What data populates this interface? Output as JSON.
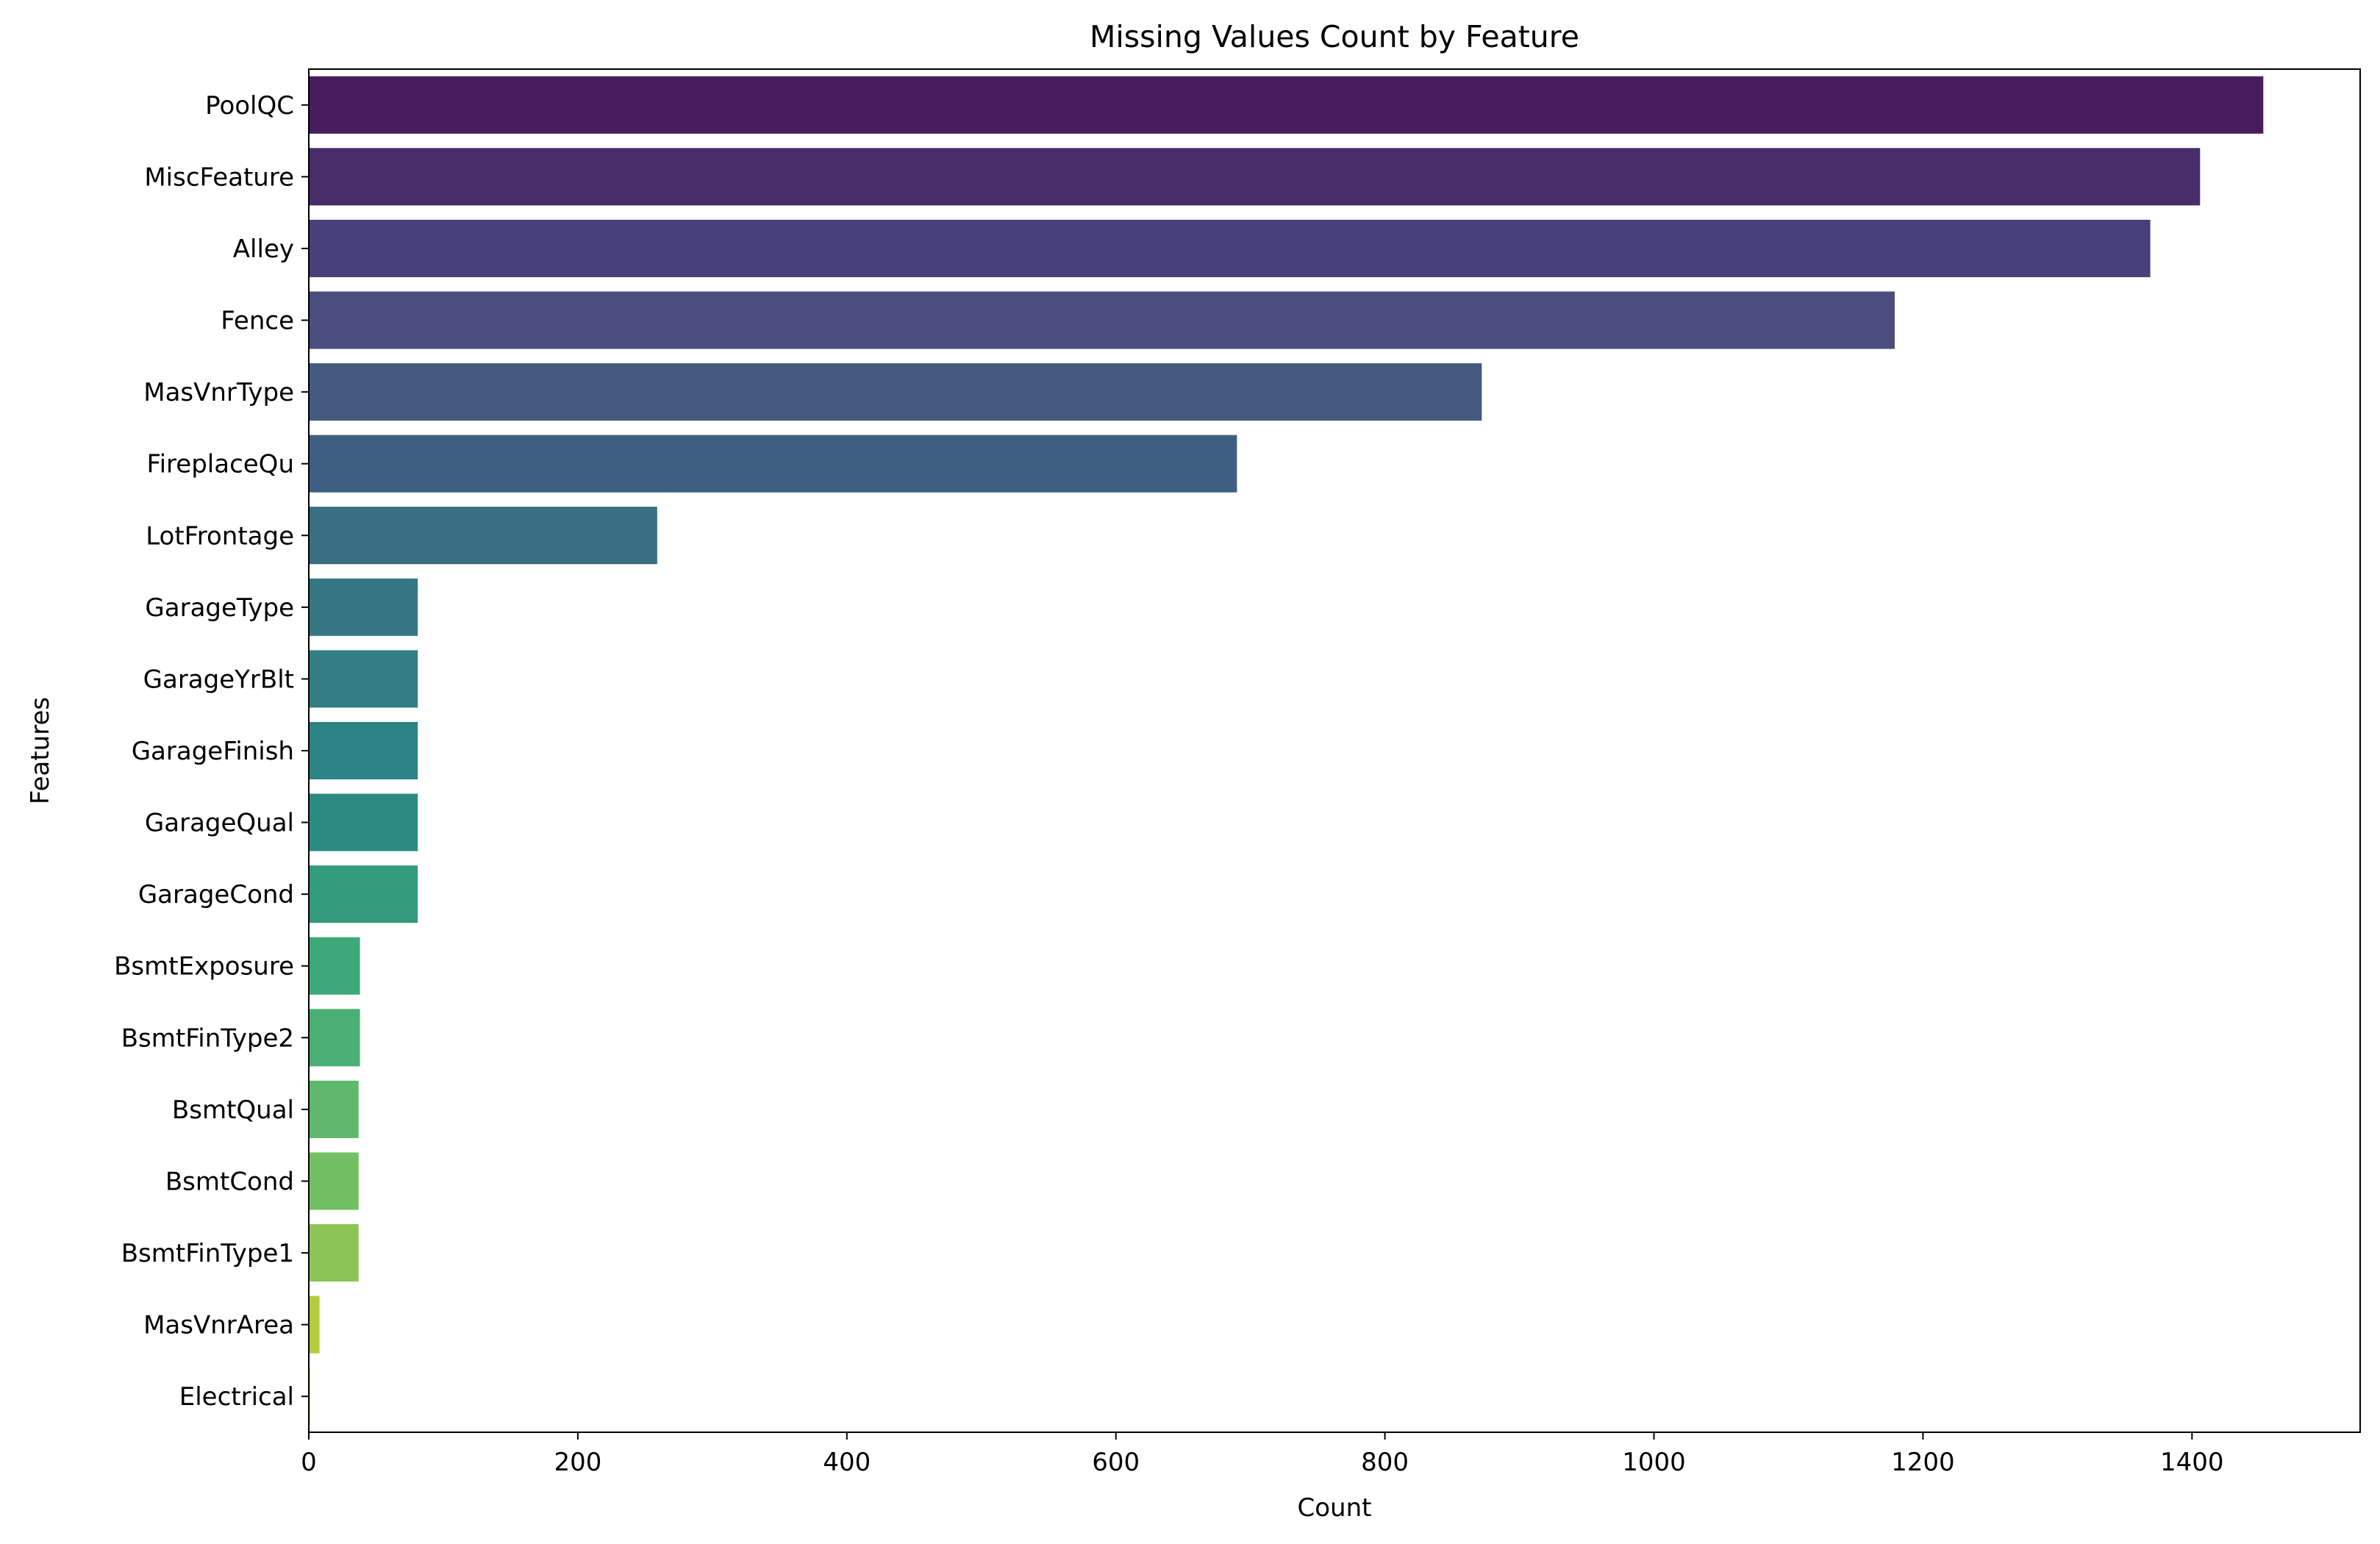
{
  "chart_data": {
    "type": "bar",
    "orientation": "horizontal",
    "title": "Missing Values Count by Feature",
    "xlabel": "Count",
    "ylabel": "Features",
    "xlim": [
      0,
      1525
    ],
    "xticks": [
      0,
      200,
      400,
      600,
      800,
      1000,
      1200,
      1400
    ],
    "grid": false,
    "legend": "none",
    "colormap": "viridis",
    "categories": [
      "PoolQC",
      "MiscFeature",
      "Alley",
      "Fence",
      "MasVnrType",
      "FireplaceQu",
      "LotFrontage",
      "GarageType",
      "GarageYrBlt",
      "GarageFinish",
      "GarageQual",
      "GarageCond",
      "BsmtExposure",
      "BsmtFinType2",
      "BsmtQual",
      "BsmtCond",
      "BsmtFinType1",
      "MasVnrArea",
      "Electrical"
    ],
    "values": [
      1453,
      1406,
      1369,
      1179,
      872,
      690,
      259,
      81,
      81,
      81,
      81,
      81,
      38,
      38,
      37,
      37,
      37,
      8,
      1
    ],
    "colors": [
      "#471d5c",
      "#482d6a",
      "#48407a",
      "#4a4d7d",
      "#445a7e",
      "#3f5f82",
      "#396e83",
      "#377683",
      "#327e83",
      "#2c8383",
      "#2b8b83",
      "#339a7b",
      "#3ea879",
      "#4aaf73",
      "#5fb96c",
      "#73c062",
      "#8cc456",
      "#b5cc3c",
      "#dbe23b"
    ]
  }
}
